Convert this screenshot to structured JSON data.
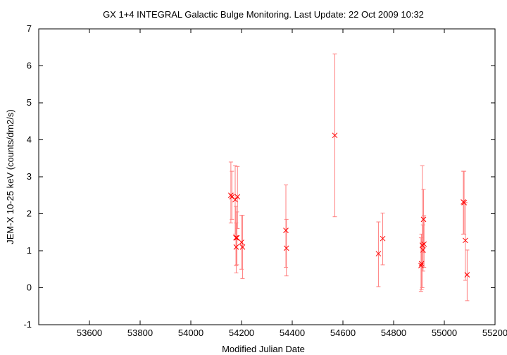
{
  "chart_data": {
    "type": "scatter",
    "title": "GX 1+4   INTEGRAL Galactic Bulge Monitoring.  Last Update: 22 Oct 2009 10:32",
    "xlabel": "Modified Julian Date",
    "ylabel": "JEM-X 10-25 keV (counts/dm2/s)",
    "xlim": [
      53400,
      55200
    ],
    "ylim": [
      -1,
      7
    ],
    "xticks": [
      53600,
      53800,
      54000,
      54200,
      54400,
      54600,
      54800,
      55000,
      55200
    ],
    "yticks": [
      -1,
      0,
      1,
      2,
      3,
      4,
      5,
      6,
      7
    ],
    "grid": false,
    "marker": "x",
    "color": "#ff0000",
    "errorbar_color": "#ff8080",
    "points": [
      {
        "x": 54158,
        "y": 2.5,
        "ylo": 1.75,
        "yhi": 3.4
      },
      {
        "x": 54162,
        "y": 2.46,
        "ylo": 1.85,
        "yhi": 3.15
      },
      {
        "x": 54175,
        "y": 2.38,
        "ylo": 1.45,
        "yhi": 3.3
      },
      {
        "x": 54178,
        "y": 1.35,
        "ylo": 0.6,
        "yhi": 2.2
      },
      {
        "x": 54179,
        "y": 1.1,
        "ylo": 0.4,
        "yhi": 1.75
      },
      {
        "x": 54182,
        "y": 1.35,
        "ylo": 0.62,
        "yhi": 2.05
      },
      {
        "x": 54184,
        "y": 2.46,
        "ylo": 1.6,
        "yhi": 3.28
      },
      {
        "x": 54200,
        "y": 1.23,
        "ylo": 0.5,
        "yhi": 1.96
      },
      {
        "x": 54204,
        "y": 1.1,
        "ylo": 0.25,
        "yhi": 1.96
      },
      {
        "x": 54375,
        "y": 1.55,
        "ylo": 0.55,
        "yhi": 2.78
      },
      {
        "x": 54377,
        "y": 1.07,
        "ylo": 0.32,
        "yhi": 1.85
      },
      {
        "x": 54568,
        "y": 4.12,
        "ylo": 1.92,
        "yhi": 6.32
      },
      {
        "x": 54740,
        "y": 0.92,
        "ylo": 0.03,
        "yhi": 1.78
      },
      {
        "x": 54757,
        "y": 1.33,
        "ylo": 0.62,
        "yhi": 2.02
      },
      {
        "x": 54908,
        "y": 0.6,
        "ylo": -0.1,
        "yhi": 1.35
      },
      {
        "x": 54910,
        "y": 0.65,
        "ylo": -0.05,
        "yhi": 1.45
      },
      {
        "x": 54913,
        "y": 1.15,
        "ylo": 0.0,
        "yhi": 3.3
      },
      {
        "x": 54916,
        "y": 1.02,
        "ylo": 0.45,
        "yhi": 1.7
      },
      {
        "x": 54918,
        "y": 1.85,
        "ylo": 0.95,
        "yhi": 2.66
      },
      {
        "x": 54920,
        "y": 1.18,
        "ylo": 0.55,
        "yhi": 1.95
      },
      {
        "x": 55075,
        "y": 2.32,
        "ylo": 1.45,
        "yhi": 3.15
      },
      {
        "x": 55078,
        "y": 2.3,
        "ylo": 1.45,
        "yhi": 3.15
      },
      {
        "x": 55083,
        "y": 1.28,
        "ylo": 0.2,
        "yhi": 2.3
      },
      {
        "x": 55090,
        "y": 0.35,
        "ylo": -0.35,
        "yhi": 1.02
      }
    ]
  }
}
